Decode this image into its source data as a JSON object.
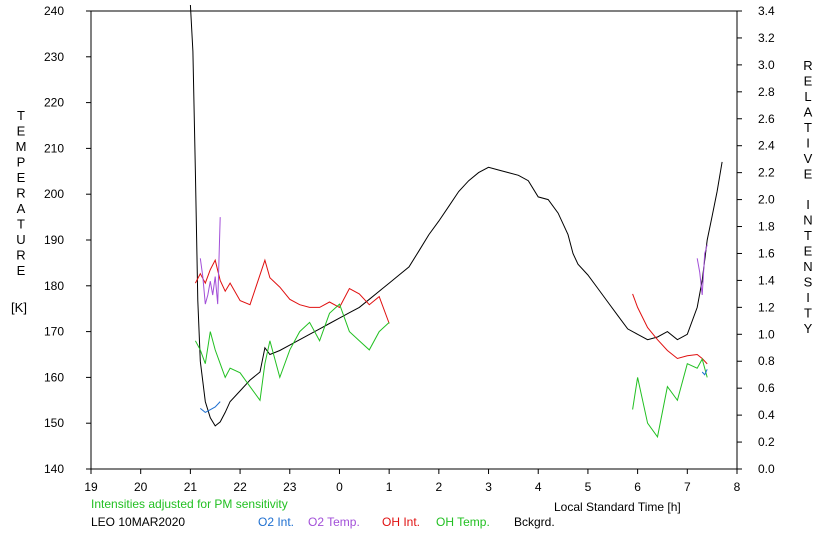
{
  "chart_data": {
    "type": "line",
    "ylabel_left": "TEMPERATURE",
    "ylabel_left_unit": "[K]",
    "ylabel_right": "RELATIVE INTENSITY",
    "xlabel": "Local Standard Time [h]",
    "note": "Intensities adjusted for PM sensitivity",
    "station": "LEO 10MAR2020",
    "x_ticks": [
      "19",
      "20",
      "21",
      "22",
      "23",
      "0",
      "1",
      "2",
      "3",
      "4",
      "5",
      "6",
      "7",
      "8"
    ],
    "xlim": [
      19,
      32
    ],
    "y_left_ticks": [
      140,
      150,
      160,
      170,
      180,
      190,
      200,
      210,
      220,
      230,
      240
    ],
    "ylim_left": [
      140,
      240
    ],
    "y_right_ticks": [
      "0.0",
      "0.2",
      "0.4",
      "0.6",
      "0.8",
      "1.0",
      "1.2",
      "1.4",
      "1.6",
      "1.8",
      "2.0",
      "2.2",
      "2.4",
      "2.6",
      "2.8",
      "3.0",
      "3.2",
      "3.4"
    ],
    "ylim_right": [
      0,
      3.4
    ],
    "grid": false,
    "colors": {
      "o2_int": "#1e6fd0",
      "o2_temp": "#a24fd8",
      "oh_int": "#e01010",
      "oh_temp": "#22c022",
      "bckgrd": "#000000",
      "note": "#22c022"
    },
    "series": [
      {
        "name": "Bckgrd.",
        "axis": "right",
        "x": [
          21.0,
          21.05,
          21.1,
          21.15,
          21.2,
          21.3,
          21.4,
          21.5,
          21.6,
          21.7,
          21.8,
          22.0,
          22.2,
          22.4,
          22.5,
          22.6,
          22.8,
          23.0,
          23.2,
          23.4,
          23.6,
          23.8,
          24.0,
          24.2,
          24.4,
          24.6,
          24.8,
          25.0,
          25.2,
          25.4,
          25.6,
          25.8,
          26.0,
          26.2,
          26.4,
          26.6,
          26.8,
          27.0,
          27.2,
          27.4,
          27.6,
          27.8,
          28.0,
          28.2,
          28.4,
          28.6,
          28.7,
          28.8,
          29.0,
          29.2,
          29.4,
          29.6,
          29.8,
          30.0,
          30.2,
          30.4,
          30.6,
          30.8,
          31.0,
          31.2,
          31.3,
          31.4,
          31.5,
          31.6,
          31.7
        ],
        "values": [
          3.45,
          3.1,
          2.2,
          1.25,
          0.8,
          0.5,
          0.38,
          0.32,
          0.35,
          0.42,
          0.5,
          0.58,
          0.66,
          0.72,
          0.9,
          0.85,
          0.88,
          0.92,
          0.96,
          1.0,
          1.04,
          1.08,
          1.12,
          1.16,
          1.2,
          1.26,
          1.32,
          1.38,
          1.44,
          1.5,
          1.62,
          1.74,
          1.84,
          1.95,
          2.06,
          2.14,
          2.2,
          2.24,
          2.22,
          2.2,
          2.18,
          2.14,
          2.02,
          2.0,
          1.9,
          1.74,
          1.6,
          1.52,
          1.44,
          1.34,
          1.24,
          1.14,
          1.04,
          1.0,
          0.96,
          0.98,
          1.02,
          0.96,
          1.0,
          1.2,
          1.4,
          1.7,
          1.88,
          2.06,
          2.28
        ]
      },
      {
        "name": "OH Int.",
        "axis": "right",
        "x": [
          21.1,
          21.2,
          21.3,
          21.4,
          21.5,
          21.6,
          21.7,
          21.8,
          22.0,
          22.2,
          22.5,
          22.6,
          22.8,
          23.0,
          23.2,
          23.4,
          23.6,
          23.8,
          24.0,
          24.2,
          24.4,
          24.6,
          24.8,
          25.0,
          29.9,
          30.0,
          30.2,
          30.4,
          30.6,
          30.8,
          31.0,
          31.2,
          31.3,
          31.4
        ],
        "values": [
          1.38,
          1.45,
          1.38,
          1.48,
          1.55,
          1.4,
          1.32,
          1.38,
          1.25,
          1.22,
          1.55,
          1.42,
          1.35,
          1.26,
          1.22,
          1.2,
          1.2,
          1.24,
          1.2,
          1.34,
          1.3,
          1.22,
          1.28,
          1.08,
          1.3,
          1.2,
          1.05,
          0.96,
          0.88,
          0.82,
          0.84,
          0.85,
          0.82,
          0.78
        ]
      },
      {
        "name": "OH Temp.",
        "axis": "left",
        "x": [
          21.1,
          21.2,
          21.3,
          21.4,
          21.5,
          21.6,
          21.7,
          21.8,
          22.0,
          22.2,
          22.4,
          22.5,
          22.6,
          22.8,
          23.0,
          23.2,
          23.4,
          23.6,
          23.8,
          24.0,
          24.2,
          24.4,
          24.6,
          24.8,
          25.0,
          29.9,
          30.0,
          30.2,
          30.4,
          30.6,
          30.8,
          31.0,
          31.2,
          31.3,
          31.4
        ],
        "values": [
          168,
          166,
          163,
          170,
          166,
          163,
          160,
          162,
          161,
          158,
          155,
          163,
          168,
          160,
          166,
          170,
          172,
          168,
          174,
          176,
          170,
          168,
          166,
          170,
          172,
          153,
          160,
          150,
          147,
          158,
          155,
          163,
          162,
          164,
          160
        ]
      },
      {
        "name": "O2 Temp.",
        "axis": "left",
        "x": [
          21.2,
          21.25,
          21.3,
          21.35,
          21.4,
          21.45,
          21.5,
          21.55,
          21.6,
          31.2,
          31.25,
          31.3,
          31.35,
          31.4
        ],
        "values": [
          186,
          182,
          176,
          178,
          181,
          178,
          182,
          176,
          195,
          186,
          183,
          178,
          187,
          189
        ]
      },
      {
        "name": "O2 Int.",
        "axis": "right",
        "x": [
          21.2,
          21.3,
          21.4,
          21.5,
          21.6,
          31.3,
          31.35,
          31.4
        ],
        "values": [
          0.45,
          0.42,
          0.44,
          0.46,
          0.5,
          0.72,
          0.7,
          0.74
        ]
      }
    ]
  }
}
